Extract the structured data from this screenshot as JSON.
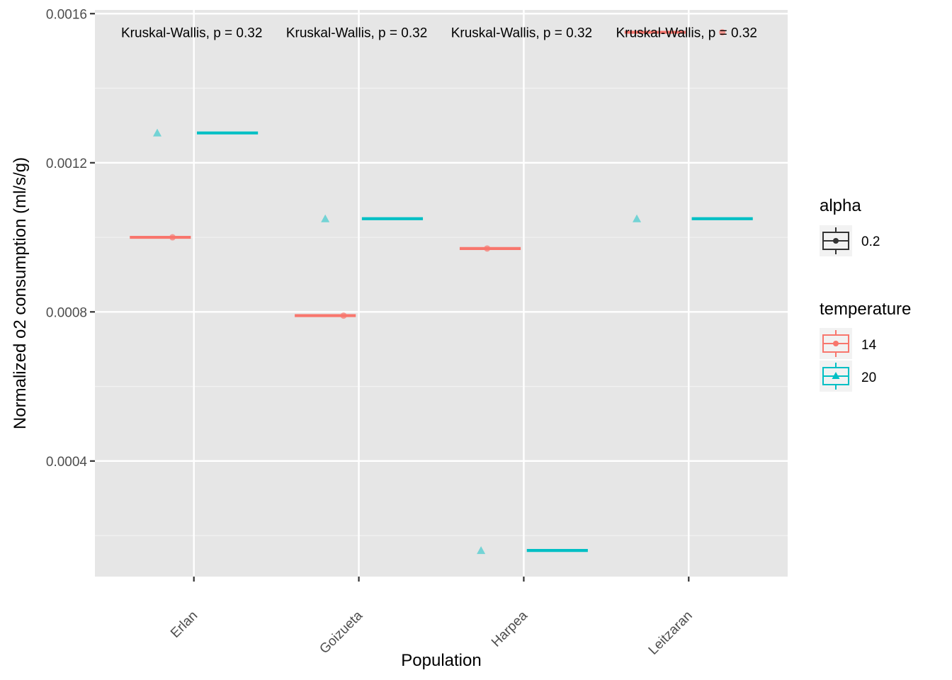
{
  "chart_data": {
    "type": "boxplot",
    "xlabel": "Population",
    "ylabel": "Normalized o2 consumption (ml/s/g)",
    "categories": [
      "Erlan",
      "Goizueta",
      "Harpea",
      "Leitzaran"
    ],
    "ylim": [
      9e-05,
      0.00161
    ],
    "yticks": [
      {
        "value": 0.0004,
        "label": "0.0004"
      },
      {
        "value": 0.0008,
        "label": "0.0008"
      },
      {
        "value": 0.0012,
        "label": "0.0012"
      },
      {
        "value": 0.0016,
        "label": "0.0016"
      }
    ],
    "grid": true,
    "legend_placement": "right",
    "series": [
      {
        "name": "14",
        "color": "#f8766d",
        "shape": "circle",
        "medians": [
          0.001,
          0.00079,
          0.00097,
          0.00155
        ],
        "points": [
          0.001,
          0.00079,
          0.00097,
          0.00155
        ]
      },
      {
        "name": "20",
        "color": "#00bfc4",
        "shape": "triangle",
        "medians": [
          0.00128,
          0.00105,
          0.00016,
          0.00105
        ],
        "points": [
          0.00128,
          0.00105,
          0.00016,
          0.00105
        ]
      }
    ],
    "annotations": [
      {
        "category": "Erlan",
        "text": "Kruskal-Wallis, p = 0.32",
        "y": 0.00155
      },
      {
        "category": "Goizueta",
        "text": "Kruskal-Wallis, p = 0.32",
        "y": 0.00155
      },
      {
        "category": "Harpea",
        "text": "Kruskal-Wallis, p = 0.32",
        "y": 0.00155
      },
      {
        "category": "Leitzaran",
        "text": "Kruskal-Wallis, p = 0.32",
        "y": 0.00155
      }
    ]
  },
  "legend": {
    "alpha_title": "alpha",
    "alpha_value": "0.2",
    "temperature_title": "temperature",
    "temperature_levels": [
      "14",
      "20"
    ]
  }
}
